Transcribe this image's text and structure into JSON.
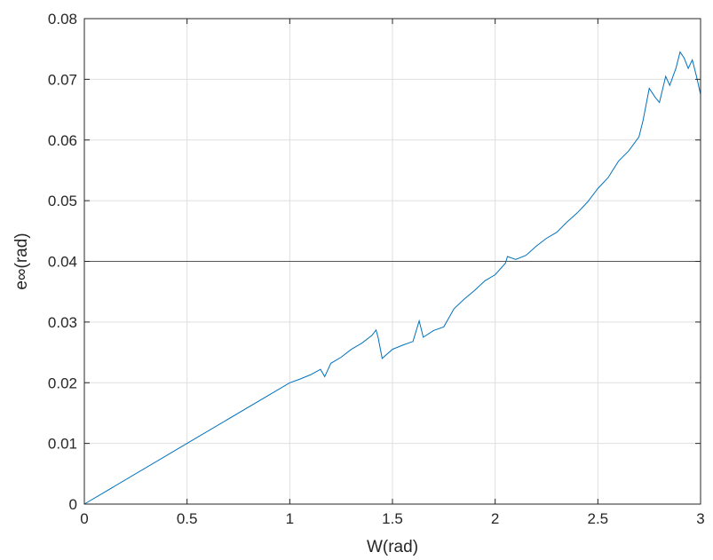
{
  "chart_data": {
    "type": "line",
    "xlabel": "W(rad)",
    "ylabel": "e∞(rad)",
    "xlim": [
      0,
      3
    ],
    "ylim": [
      0,
      0.08
    ],
    "xticks": [
      0,
      0.5,
      1,
      1.5,
      2,
      2.5,
      3
    ],
    "xtick_labels": [
      "0",
      "0.5",
      "1",
      "1.5",
      "2",
      "2.5",
      "3"
    ],
    "yticks": [
      0,
      0.01,
      0.02,
      0.03,
      0.04,
      0.05,
      0.06,
      0.07,
      0.08
    ],
    "ytick_labels": [
      "0",
      "0.01",
      "0.02",
      "0.03",
      "0.04",
      "0.05",
      "0.06",
      "0.07",
      "0.08"
    ],
    "grid": true,
    "reference_line": {
      "y": 0.04,
      "color": "#555555"
    },
    "series": [
      {
        "color": "#0072BD",
        "x": [
          0,
          0.5,
          1.0,
          1.05,
          1.1,
          1.15,
          1.17,
          1.2,
          1.25,
          1.3,
          1.35,
          1.4,
          1.42,
          1.43,
          1.45,
          1.5,
          1.55,
          1.6,
          1.63,
          1.65,
          1.7,
          1.75,
          1.8,
          1.85,
          1.9,
          1.95,
          2.0,
          2.05,
          2.06,
          2.1,
          2.15,
          2.2,
          2.25,
          2.3,
          2.35,
          2.4,
          2.45,
          2.5,
          2.55,
          2.6,
          2.65,
          2.7,
          2.72,
          2.75,
          2.78,
          2.8,
          2.83,
          2.85,
          2.88,
          2.9,
          2.92,
          2.94,
          2.96,
          2.98,
          3.0
        ],
        "y": [
          0,
          0.01,
          0.02,
          0.0206,
          0.0213,
          0.0222,
          0.021,
          0.0232,
          0.0242,
          0.0255,
          0.0265,
          0.0278,
          0.0287,
          0.0275,
          0.024,
          0.0255,
          0.0262,
          0.0268,
          0.0302,
          0.0275,
          0.0286,
          0.0292,
          0.0322,
          0.0338,
          0.0352,
          0.0368,
          0.0378,
          0.0397,
          0.0408,
          0.0403,
          0.041,
          0.0425,
          0.0438,
          0.0448,
          0.0465,
          0.048,
          0.0498,
          0.052,
          0.0538,
          0.0565,
          0.0582,
          0.0605,
          0.0632,
          0.0685,
          0.067,
          0.0662,
          0.0705,
          0.069,
          0.0718,
          0.0745,
          0.0735,
          0.0718,
          0.0732,
          0.0705,
          0.0675
        ]
      }
    ]
  }
}
